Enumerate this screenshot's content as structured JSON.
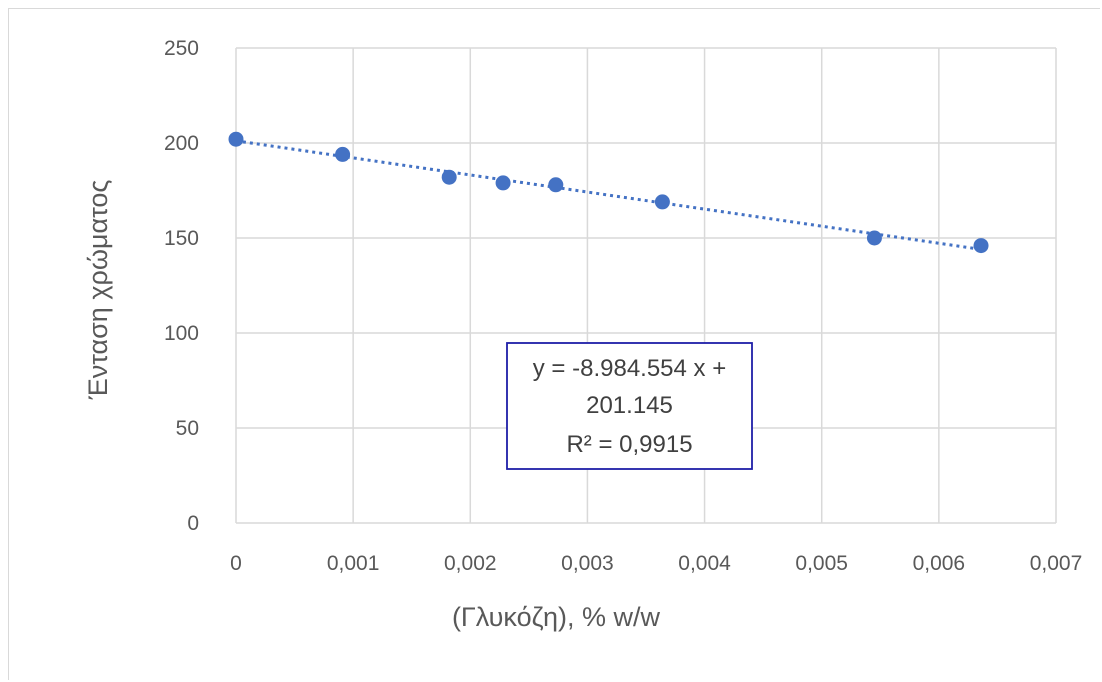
{
  "chart_data": {
    "type": "scatter",
    "title": "",
    "xlabel": "(Γλυκόζη), % w/w",
    "ylabel": "Ένταση χρώματος",
    "xlim": [
      0,
      0.007
    ],
    "ylim": [
      0,
      250
    ],
    "x_ticks": [
      0,
      0.001,
      0.002,
      0.003,
      0.004,
      0.005,
      0.006,
      0.007
    ],
    "x_tick_labels": [
      "0",
      "0,001",
      "0,002",
      "0,003",
      "0,004",
      "0,005",
      "0,006",
      "0,007"
    ],
    "y_ticks": [
      0,
      50,
      100,
      150,
      200,
      250
    ],
    "y_tick_labels": [
      "0",
      "50",
      "100",
      "150",
      "200",
      "250"
    ],
    "grid": true,
    "legend": "none",
    "series": [
      {
        "x": [
          0,
          0.00091,
          0.00182,
          0.00228,
          0.00273,
          0.00364,
          0.00545,
          0.00636
        ],
        "y": [
          202,
          194,
          182,
          179,
          178,
          169,
          150,
          146
        ],
        "color": "#4472C4"
      }
    ],
    "trendline": {
      "type": "linear",
      "style": "dotted",
      "color": "#4472C4",
      "slope": -8984.554,
      "intercept": 201.145,
      "x_range": [
        0,
        0.00636
      ],
      "label_lines": [
        "y = -8.984.554 x +",
        "201.145",
        "R² = 0,9915"
      ],
      "label_border_color": "#1F1FA8"
    }
  }
}
